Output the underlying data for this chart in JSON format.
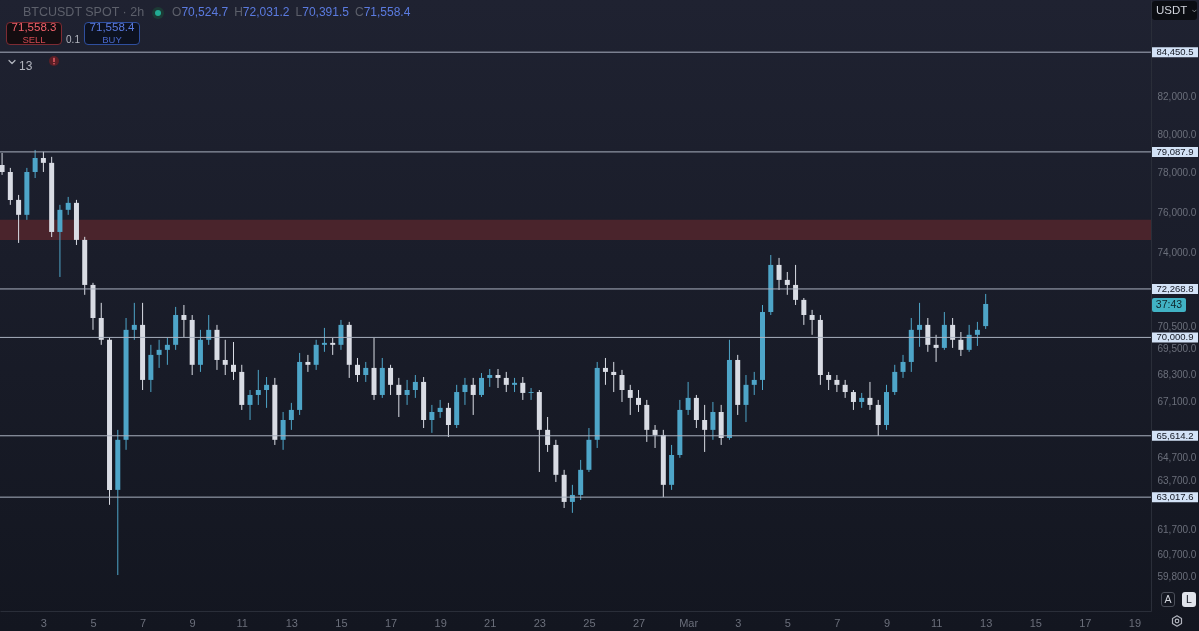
{
  "chart_data": {
    "type": "candlestick",
    "title": "BTCUSDT SPOT · 2h",
    "annotations": [
      "O70,524.7",
      "H72,031.2",
      "L70,391.5",
      "C71,558.4",
      "71,558.3",
      "SELL",
      "0.1",
      "71,558.4",
      "BUY",
      "13",
      "USDT",
      "A",
      "L",
      "37:43"
    ],
    "x": [
      "--02-01T08:00",
      "--02-01T16:00",
      "--02-02T00:00",
      "--02-02T08:00",
      "--02-02T16:00",
      "--02-03T00:00",
      "--02-03T08:00",
      "--02-03T16:00",
      "--02-04T00:00",
      "--02-04T08:00",
      "--02-04T16:00",
      "--02-05T00:00",
      "--02-05T08:00",
      "--02-05T16:00",
      "--02-06T00:00",
      "--02-06T08:00",
      "--02-06T16:00",
      "--02-07T00:00",
      "--02-07T08:00",
      "--02-07T16:00",
      "--02-08T00:00",
      "--02-08T08:00",
      "--02-08T16:00",
      "--02-09T00:00",
      "--02-09T08:00",
      "--02-09T16:00",
      "--02-10T00:00",
      "--02-10T08:00",
      "--02-10T16:00",
      "--02-11T00:00",
      "--02-11T08:00",
      "--02-11T16:00",
      "--02-12T00:00",
      "--02-12T08:00",
      "--02-12T16:00",
      "--02-13T00:00",
      "--02-13T08:00",
      "--02-13T16:00",
      "--02-14T00:00",
      "--02-14T08:00",
      "--02-14T16:00",
      "--02-15T00:00",
      "--02-15T08:00",
      "--02-15T16:00",
      "--02-16T00:00",
      "--02-16T08:00",
      "--02-16T16:00",
      "--02-17T00:00",
      "--02-17T08:00",
      "--02-17T16:00",
      "--02-18T00:00",
      "--02-18T08:00",
      "--02-18T16:00",
      "--02-19T00:00",
      "--02-19T08:00",
      "--02-19T16:00",
      "--02-20T00:00",
      "--02-20T08:00",
      "--02-20T16:00",
      "--02-21T00:00",
      "--02-21T08:00",
      "--02-21T16:00",
      "--02-22T00:00",
      "--02-22T08:00",
      "--02-22T16:00",
      "--02-23T00:00",
      "--02-23T08:00",
      "--02-23T16:00",
      "--02-24T00:00",
      "--02-24T08:00",
      "--02-24T16:00",
      "--02-25T00:00",
      "--02-25T08:00",
      "--02-25T16:00",
      "--02-26T00:00",
      "--02-26T08:00",
      "--02-26T16:00",
      "--02-27T00:00",
      "--02-27T08:00",
      "--02-27T16:00",
      "--02-28T00:00",
      "--02-28T08:00",
      "--02-28T16:00",
      "--03-01T00:00",
      "--03-01T08:00",
      "--03-01T16:00",
      "--03-02T00:00",
      "--03-02T08:00",
      "--03-02T16:00",
      "--03-03T00:00",
      "--03-03T08:00",
      "--03-03T16:00",
      "--03-04T00:00",
      "--03-04T08:00",
      "--03-04T16:00",
      "--03-05T00:00",
      "--03-05T08:00",
      "--03-05T16:00",
      "--03-06T00:00",
      "--03-06T08:00",
      "--03-06T16:00",
      "--03-07T00:00",
      "--03-07T08:00",
      "--03-07T16:00",
      "--03-08T00:00",
      "--03-08T08:00",
      "--03-08T16:00",
      "--03-09T00:00",
      "--03-09T08:00",
      "--03-09T16:00",
      "--03-10T00:00",
      "--03-10T08:00",
      "--03-10T16:00",
      "--03-11T00:00",
      "--03-11T08:00",
      "--03-11T16:00",
      "--03-12T00:00",
      "--03-12T08:00",
      "--03-12T16:00",
      "--03-13T00:00"
    ],
    "ohlc": [
      [
        78410,
        79030,
        77900,
        78050
      ],
      [
        78050,
        78260,
        76380,
        76630
      ],
      [
        76630,
        76880,
        74490,
        75880
      ],
      [
        75880,
        78260,
        75630,
        78050
      ],
      [
        78050,
        79190,
        77740,
        78770
      ],
      [
        78770,
        79090,
        78050,
        78520
      ],
      [
        78520,
        78830,
        74780,
        75030
      ],
      [
        75030,
        76380,
        72840,
        76130
      ],
      [
        76130,
        76780,
        75880,
        76480
      ],
      [
        76480,
        76630,
        74390,
        74640
      ],
      [
        74640,
        74790,
        71990,
        72460
      ],
      [
        72460,
        72560,
        70350,
        70900
      ],
      [
        70900,
        71610,
        69660,
        69890
      ],
      [
        69890,
        69980,
        62700,
        63320
      ],
      [
        63320,
        65870,
        59870,
        65440
      ],
      [
        65440,
        70900,
        65010,
        70350
      ],
      [
        70350,
        71610,
        69890,
        70580
      ],
      [
        70580,
        71610,
        67620,
        68070
      ],
      [
        68070,
        69660,
        67530,
        69200
      ],
      [
        69200,
        69890,
        68610,
        69430
      ],
      [
        69430,
        69980,
        68750,
        69660
      ],
      [
        69660,
        71420,
        69430,
        71040
      ],
      [
        71040,
        71510,
        70020,
        70810
      ],
      [
        70810,
        71040,
        68290,
        68750
      ],
      [
        68750,
        70350,
        68430,
        69890
      ],
      [
        69890,
        71040,
        69660,
        70350
      ],
      [
        70350,
        70580,
        68520,
        68970
      ],
      [
        68970,
        69890,
        68290,
        68750
      ],
      [
        68750,
        69790,
        68070,
        68430
      ],
      [
        68430,
        68750,
        66740,
        66960
      ],
      [
        66960,
        67620,
        66300,
        67400
      ],
      [
        67400,
        68520,
        66960,
        67620
      ],
      [
        67620,
        68200,
        66830,
        67850
      ],
      [
        67850,
        68160,
        65220,
        65440
      ],
      [
        65440,
        66650,
        65010,
        66300
      ],
      [
        66300,
        67050,
        65870,
        66740
      ],
      [
        66740,
        69290,
        66520,
        68880
      ],
      [
        68880,
        69200,
        68430,
        68750
      ],
      [
        68750,
        69890,
        68520,
        69660
      ],
      [
        69660,
        70440,
        69340,
        69750
      ],
      [
        69750,
        69980,
        69200,
        69660
      ],
      [
        69660,
        70810,
        69430,
        70580
      ],
      [
        70580,
        70720,
        68160,
        68750
      ],
      [
        68750,
        69060,
        67980,
        68290
      ],
      [
        68290,
        68880,
        67980,
        68610
      ],
      [
        68610,
        69980,
        67180,
        67400
      ],
      [
        67400,
        69060,
        67270,
        68610
      ],
      [
        68610,
        68750,
        67400,
        67850
      ],
      [
        67850,
        68160,
        66430,
        67400
      ],
      [
        67400,
        68070,
        66960,
        67620
      ],
      [
        67620,
        68290,
        67270,
        67980
      ],
      [
        67980,
        68200,
        65950,
        66300
      ],
      [
        66300,
        66960,
        65740,
        66650
      ],
      [
        66650,
        67180,
        66390,
        66830
      ],
      [
        66830,
        67050,
        65560,
        66080
      ],
      [
        66080,
        67850,
        65950,
        67530
      ],
      [
        67530,
        68160,
        66960,
        67850
      ],
      [
        67850,
        68160,
        66520,
        67400
      ],
      [
        67400,
        68380,
        67310,
        68160
      ],
      [
        68160,
        68560,
        67760,
        68290
      ],
      [
        68290,
        68560,
        67710,
        68160
      ],
      [
        68160,
        68430,
        67530,
        67850
      ],
      [
        67850,
        68160,
        67530,
        67940
      ],
      [
        67940,
        68200,
        67180,
        67490
      ],
      [
        67490,
        67710,
        67180,
        67530
      ],
      [
        67530,
        67620,
        64070,
        65870
      ],
      [
        65870,
        66430,
        64920,
        65220
      ],
      [
        65220,
        65440,
        63650,
        63950
      ],
      [
        63950,
        64160,
        62570,
        62820
      ],
      [
        62820,
        63530,
        62370,
        63110
      ],
      [
        63110,
        64580,
        62900,
        64160
      ],
      [
        64160,
        65950,
        64070,
        65440
      ],
      [
        65440,
        68880,
        65090,
        68610
      ],
      [
        68610,
        69060,
        67850,
        68430
      ],
      [
        68430,
        68880,
        67530,
        68290
      ],
      [
        68290,
        68520,
        67090,
        67620
      ],
      [
        67620,
        67850,
        66520,
        67270
      ],
      [
        67270,
        67620,
        66650,
        66960
      ],
      [
        66960,
        67180,
        65350,
        65870
      ],
      [
        65870,
        66080,
        65090,
        65650
      ],
      [
        65650,
        65870,
        63020,
        63530
      ],
      [
        63530,
        65220,
        63320,
        64790
      ],
      [
        64790,
        67180,
        64670,
        66740
      ],
      [
        66740,
        67980,
        66520,
        67270
      ],
      [
        67270,
        67400,
        65950,
        66300
      ],
      [
        66300,
        66960,
        64920,
        65870
      ],
      [
        65870,
        67090,
        65440,
        66650
      ],
      [
        66650,
        66960,
        65220,
        65520
      ],
      [
        65520,
        69890,
        65440,
        68970
      ],
      [
        68970,
        69200,
        66520,
        66960
      ],
      [
        66960,
        68290,
        66210,
        67850
      ],
      [
        67850,
        68430,
        67400,
        68070
      ],
      [
        68070,
        71510,
        67620,
        71180
      ],
      [
        71180,
        73900,
        71040,
        73420
      ],
      [
        73420,
        73760,
        72220,
        72700
      ],
      [
        72700,
        73080,
        71990,
        72460
      ],
      [
        72460,
        73420,
        71510,
        71750
      ],
      [
        71750,
        71840,
        70580,
        71040
      ],
      [
        71040,
        71280,
        70120,
        70810
      ],
      [
        70810,
        71040,
        67850,
        68290
      ],
      [
        68290,
        68430,
        67620,
        68070
      ],
      [
        68070,
        68290,
        67530,
        67850
      ],
      [
        67850,
        68070,
        67270,
        67530
      ],
      [
        67530,
        67620,
        66740,
        67090
      ],
      [
        67090,
        67490,
        66830,
        67270
      ],
      [
        67270,
        67980,
        66740,
        66960
      ],
      [
        66960,
        67180,
        65610,
        66080
      ],
      [
        66080,
        67850,
        65870,
        67530
      ],
      [
        67530,
        68750,
        67400,
        68430
      ],
      [
        68430,
        69200,
        68160,
        68880
      ],
      [
        68880,
        70900,
        68430,
        70350
      ],
      [
        70350,
        71610,
        69570,
        70580
      ],
      [
        70580,
        70900,
        69340,
        69660
      ],
      [
        69660,
        70120,
        68880,
        69520
      ],
      [
        69520,
        71180,
        69430,
        70580
      ],
      [
        70580,
        70900,
        69520,
        69890
      ],
      [
        69890,
        70250,
        69150,
        69430
      ],
      [
        69430,
        70580,
        69340,
        70120
      ],
      [
        70120,
        70720,
        69610,
        70350
      ],
      [
        70524.7,
        72031.2,
        70391.5,
        71558.4
      ]
    ],
    "colors": [
      "#d9dce4",
      "#d9dce4",
      "#d9dce4",
      "#4ea5c8",
      "#4ea5c8",
      "#d9dce4",
      "#d9dce4",
      "#4ea5c8",
      "#4ea5c8",
      "#d9dce4",
      "#d9dce4",
      "#d9dce4",
      "#d9dce4",
      "#d9dce4",
      "#4ea5c8",
      "#4ea5c8",
      "#4ea5c8",
      "#d9dce4",
      "#4ea5c8",
      "#4ea5c8",
      "#4ea5c8",
      "#4ea5c8",
      "#d9dce4",
      "#d9dce4",
      "#4ea5c8",
      "#4ea5c8",
      "#d9dce4",
      "#d9dce4",
      "#d9dce4",
      "#d9dce4",
      "#4ea5c8",
      "#4ea5c8",
      "#4ea5c8",
      "#d9dce4",
      "#4ea5c8",
      "#4ea5c8",
      "#4ea5c8",
      "#d9dce4",
      "#4ea5c8",
      "#4ea5c8",
      "#d9dce4",
      "#4ea5c8",
      "#d9dce4",
      "#d9dce4",
      "#4ea5c8",
      "#d9dce4",
      "#4ea5c8",
      "#d9dce4",
      "#d9dce4",
      "#4ea5c8",
      "#4ea5c8",
      "#d9dce4",
      "#4ea5c8",
      "#4ea5c8",
      "#d9dce4",
      "#4ea5c8",
      "#4ea5c8",
      "#d9dce4",
      "#4ea5c8",
      "#4ea5c8",
      "#d9dce4",
      "#d9dce4",
      "#4ea5c8",
      "#d9dce4",
      "#4ea5c8",
      "#d9dce4",
      "#d9dce4",
      "#d9dce4",
      "#d9dce4",
      "#4ea5c8",
      "#4ea5c8",
      "#4ea5c8",
      "#4ea5c8",
      "#d9dce4",
      "#d9dce4",
      "#d9dce4",
      "#d9dce4",
      "#d9dce4",
      "#d9dce4",
      "#d9dce4",
      "#d9dce4",
      "#4ea5c8",
      "#4ea5c8",
      "#4ea5c8",
      "#d9dce4",
      "#d9dce4",
      "#4ea5c8",
      "#d9dce4",
      "#4ea5c8",
      "#d9dce4",
      "#4ea5c8",
      "#4ea5c8",
      "#4ea5c8",
      "#4ea5c8",
      "#d9dce4",
      "#d9dce4",
      "#d9dce4",
      "#d9dce4",
      "#d9dce4",
      "#d9dce4",
      "#d9dce4",
      "#d9dce4",
      "#d9dce4",
      "#d9dce4",
      "#4ea5c8",
      "#d9dce4",
      "#d9dce4",
      "#4ea5c8",
      "#4ea5c8",
      "#4ea5c8",
      "#4ea5c8",
      "#4ea5c8",
      "#d9dce4",
      "#d9dce4",
      "#4ea5c8",
      "#d9dce4",
      "#d9dce4",
      "#4ea5c8",
      "#4ea5c8",
      "#4ea5c8"
    ],
    "xlim": [
      "--02-01T06:00",
      "--03-19T16:00"
    ],
    "xticks": [
      {
        "value": "--02-03",
        "label": "3"
      },
      {
        "value": "--02-05",
        "label": "5"
      },
      {
        "value": "--02-07",
        "label": "7"
      },
      {
        "value": "--02-09",
        "label": "9"
      },
      {
        "value": "--02-11",
        "label": "11"
      },
      {
        "value": "--02-13",
        "label": "13"
      },
      {
        "value": "--02-15",
        "label": "15"
      },
      {
        "value": "--02-17",
        "label": "17"
      },
      {
        "value": "--02-19",
        "label": "19"
      },
      {
        "value": "--02-21",
        "label": "21"
      },
      {
        "value": "--02-23",
        "label": "23"
      },
      {
        "value": "--02-25",
        "label": "25"
      },
      {
        "value": "--02-27",
        "label": "27"
      },
      {
        "value": "--03-01",
        "label": "Mar"
      },
      {
        "value": "--03-03",
        "label": "3"
      },
      {
        "value": "--03-05",
        "label": "5"
      },
      {
        "value": "--03-07",
        "label": "7"
      },
      {
        "value": "--03-09",
        "label": "9"
      },
      {
        "value": "--03-11",
        "label": "11"
      },
      {
        "value": "--03-13",
        "label": "13"
      },
      {
        "value": "--03-15",
        "label": "15"
      },
      {
        "value": "--03-17",
        "label": "17"
      },
      {
        "value": "--03-19",
        "label": "19"
      }
    ],
    "ylim": [
      58470,
      87400
    ],
    "yticks": [
      {
        "value": 82000,
        "label": "82,000.0"
      },
      {
        "value": 80000,
        "label": "80,000.0"
      },
      {
        "value": 78000,
        "label": "78,000.0"
      },
      {
        "value": 76000,
        "label": "76,000.0"
      },
      {
        "value": 74000,
        "label": "74,000.0"
      },
      {
        "value": 70500,
        "label": "70,500.0"
      },
      {
        "value": 69500,
        "label": "69,500.0"
      },
      {
        "value": 68300,
        "label": "68,300.0"
      },
      {
        "value": 67100,
        "label": "67,100.0"
      },
      {
        "value": 64700,
        "label": "64,700.0"
      },
      {
        "value": 63700,
        "label": "63,700.0"
      },
      {
        "value": 61700,
        "label": "61,700.0"
      },
      {
        "value": 60700,
        "label": "60,700.0"
      },
      {
        "value": 59800,
        "label": "59,800.0"
      }
    ],
    "log": true,
    "ref_lines": [
      {
        "axis": "y",
        "value": 84450.5,
        "label": "84,450.5",
        "color": "#a9b0bf"
      },
      {
        "axis": "y",
        "value": 79087.9,
        "label": "79,087.9",
        "color": "#a9b0bf"
      },
      {
        "axis": "y",
        "value": 72268.8,
        "label": "72,268.8",
        "color": "#a9b0bf"
      },
      {
        "axis": "y",
        "value": 70000.9,
        "label": "70,000.9",
        "color": "#a9b0bf"
      },
      {
        "axis": "y",
        "value": 65614.2,
        "label": "65,614.2",
        "color": "#a9b0bf"
      },
      {
        "axis": "y",
        "value": 63017.6,
        "label": "63,017.6",
        "color": "#a9b0bf"
      }
    ],
    "bands": [
      {
        "axis": "y",
        "from": 74640,
        "to": 75630,
        "color": "#4a242c"
      }
    ]
  }
}
